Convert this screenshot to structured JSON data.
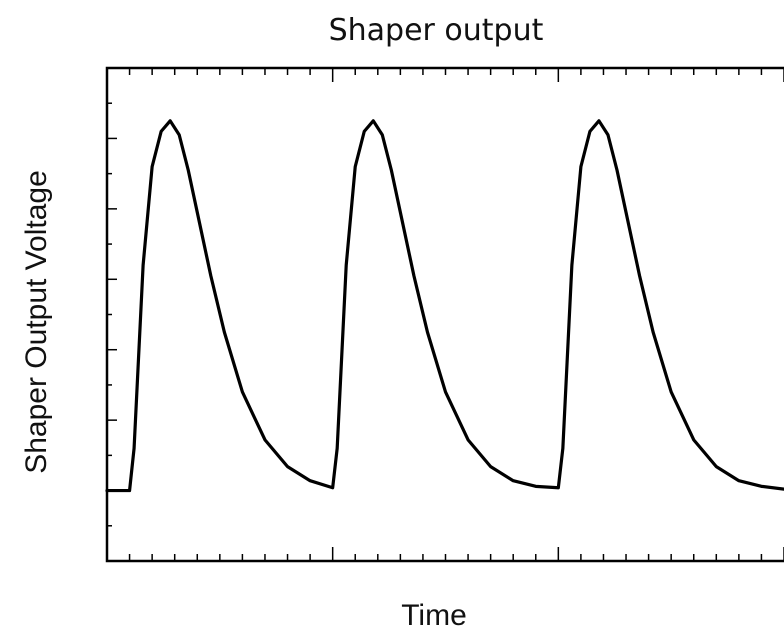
{
  "chart_data": {
    "type": "line",
    "title": "Shaper output",
    "xlabel": "Time",
    "ylabel": "Shaper Output Voltage",
    "xlim": [
      0,
      30
    ],
    "ylim": [
      -1,
      6
    ],
    "x_ticks_major": [
      0,
      10,
      20
    ],
    "y_ticks_major": [
      0,
      1,
      2,
      3,
      4,
      5
    ],
    "minor_ticks_per_major": 10,
    "tick_labels_shown": false,
    "grid": false,
    "series": [
      {
        "x": [
          0,
          1,
          1.2,
          1.6,
          2.0,
          2.4,
          2.8,
          3.2,
          3.6,
          4.0,
          4.6,
          5.2,
          6.0,
          7.0,
          8.0,
          9.0,
          10.0,
          10.2,
          10.6,
          11.0,
          11.4,
          11.8,
          12.2,
          12.6,
          13.0,
          13.6,
          14.2,
          15.0,
          16.0,
          17.0,
          18.0,
          19.0,
          20.0,
          20.2,
          20.6,
          21.0,
          21.4,
          21.8,
          22.2,
          22.6,
          23.0,
          23.6,
          24.2,
          25.0,
          26.0,
          27.0,
          28.0,
          29.0,
          30.0
        ],
        "y": [
          0,
          0,
          0.6,
          3.2,
          4.6,
          5.1,
          5.25,
          5.05,
          4.55,
          3.95,
          3.05,
          2.25,
          1.4,
          0.72,
          0.34,
          0.14,
          0.04,
          0.6,
          3.2,
          4.6,
          5.1,
          5.25,
          5.05,
          4.55,
          3.95,
          3.05,
          2.25,
          1.4,
          0.72,
          0.34,
          0.14,
          0.06,
          0.04,
          0.6,
          3.2,
          4.6,
          5.1,
          5.25,
          5.05,
          4.55,
          3.95,
          3.05,
          2.25,
          1.4,
          0.72,
          0.34,
          0.14,
          0.06,
          0.02
        ]
      }
    ]
  }
}
